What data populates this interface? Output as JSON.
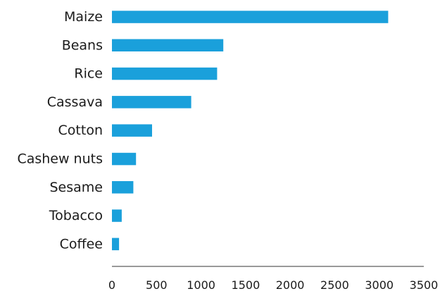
{
  "chart_data": {
    "type": "bar",
    "orientation": "horizontal",
    "title": "",
    "xlabel": "",
    "ylabel": "",
    "categories": [
      "Maize",
      "Beans",
      "Rice",
      "Cassava",
      "Cotton",
      "Cashew nuts",
      "Sesame",
      "Tobacco",
      "Coffee"
    ],
    "values": [
      3100,
      1250,
      1180,
      890,
      450,
      270,
      240,
      110,
      80
    ],
    "xlim": [
      0,
      3500
    ],
    "xticks": [
      0,
      500,
      1000,
      1500,
      2000,
      2500,
      3000,
      3500
    ],
    "tick_labels": [
      "0",
      "500",
      "1000",
      "1500",
      "2000",
      "2500",
      "3000",
      "3500"
    ],
    "grid": false,
    "legend": "none",
    "bar_color": "#1aa0db",
    "axis_color": "#333333"
  }
}
